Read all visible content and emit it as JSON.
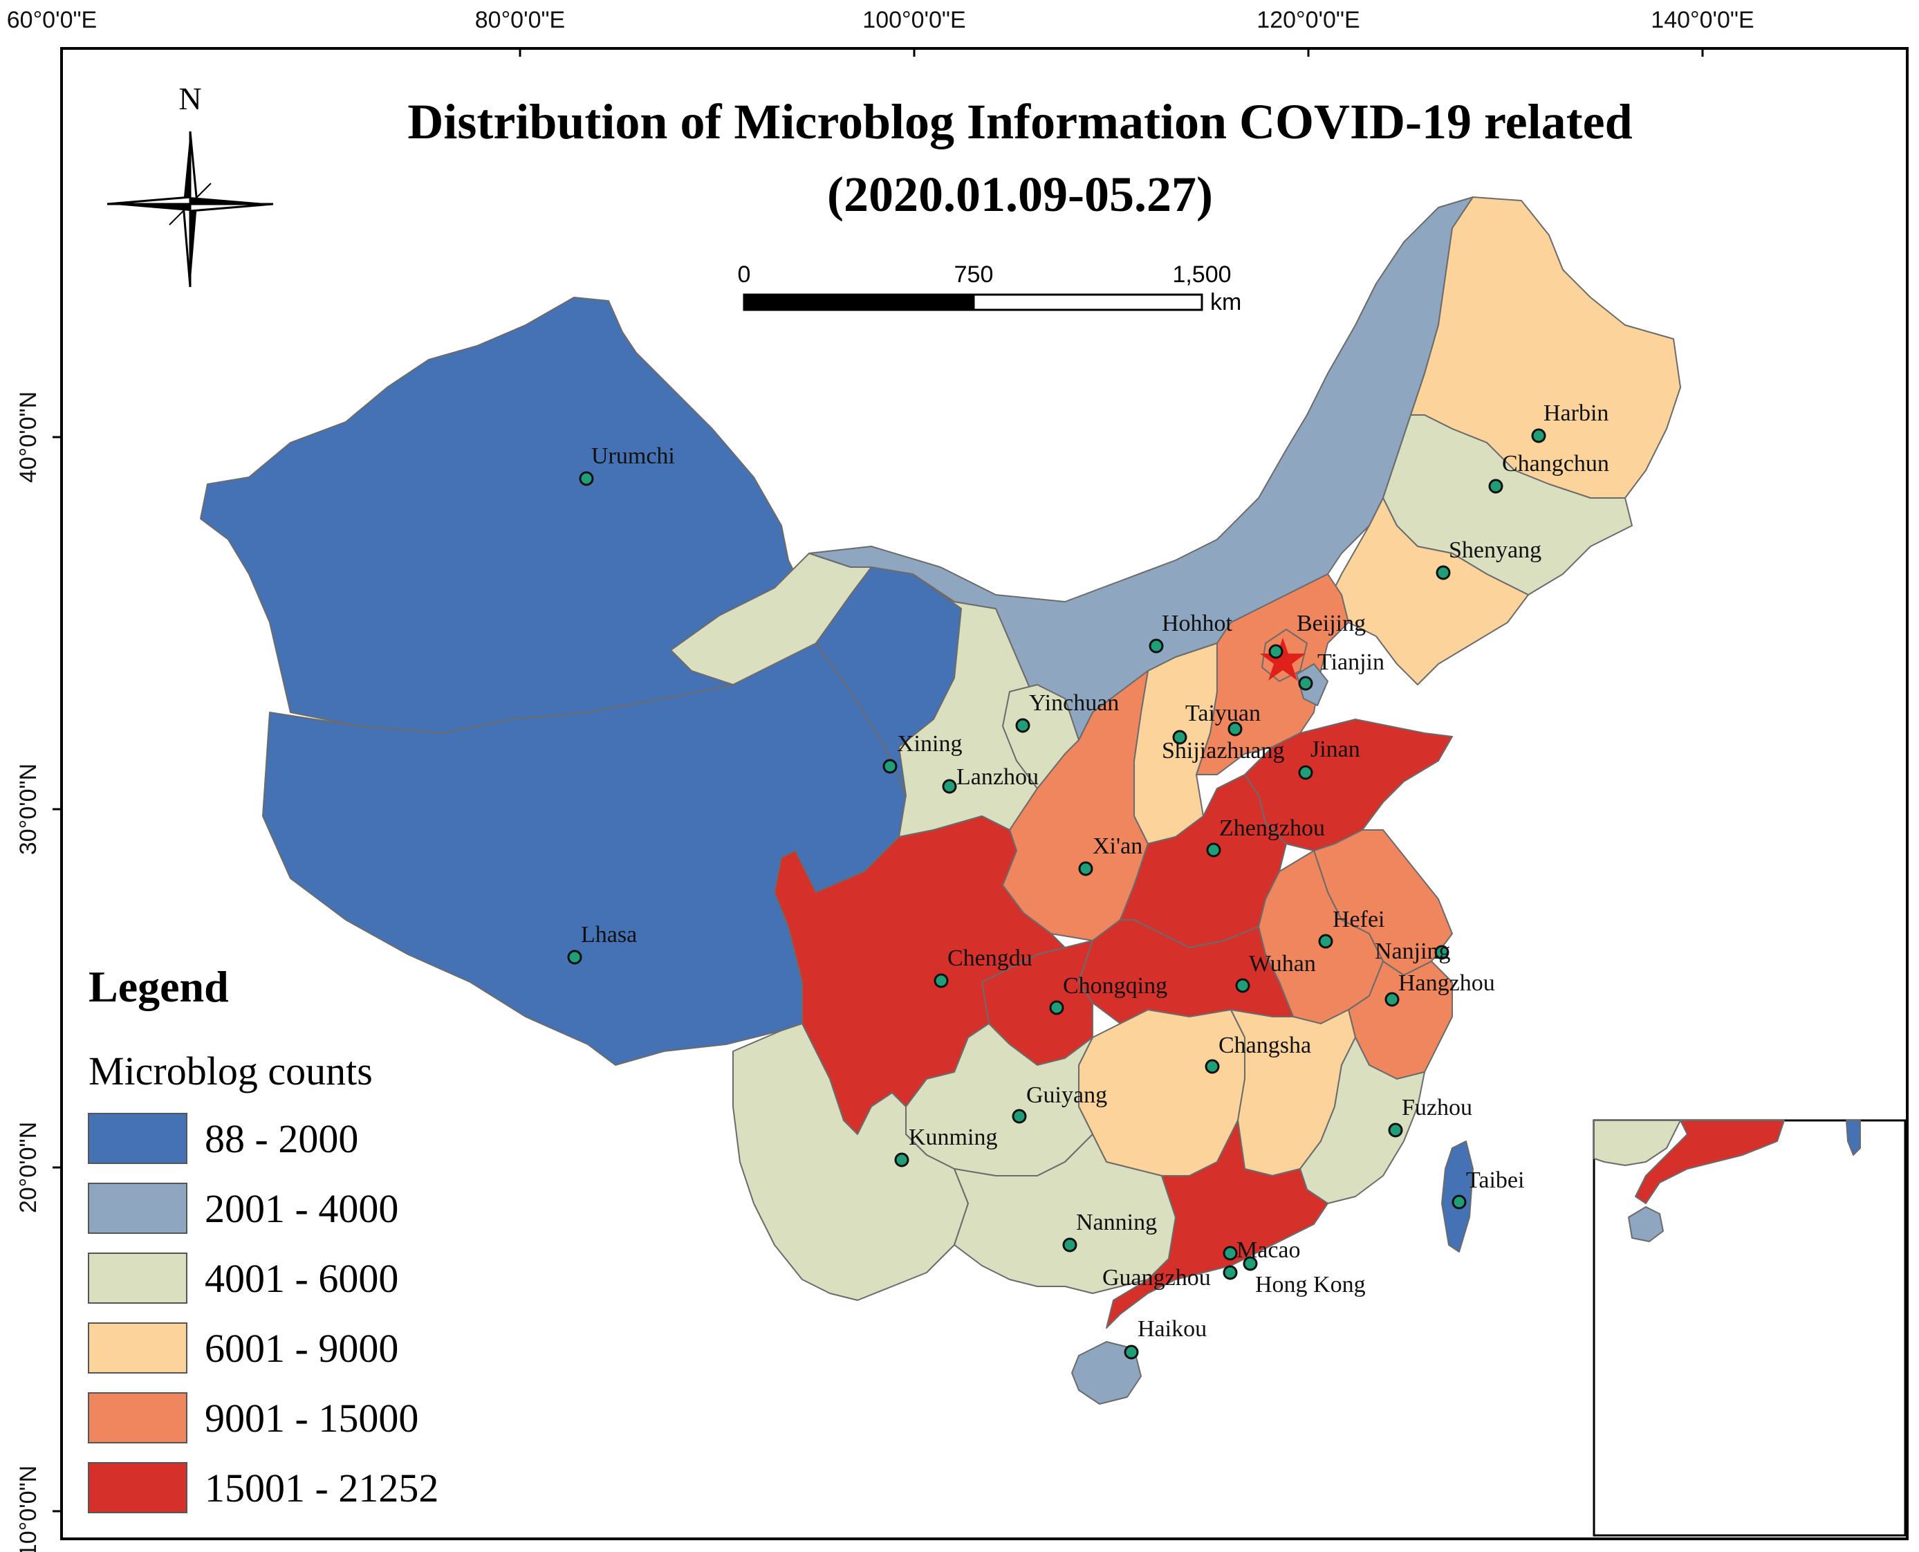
{
  "title": {
    "line1": "Distribution of Microblog Information COVID-19 related",
    "line2": "(2020.01.09-05.27)"
  },
  "north_arrow": {
    "label": "N",
    "icon": "north-arrow-icon"
  },
  "scale_bar": {
    "labels": [
      "0",
      "750",
      "1,500"
    ],
    "unit": "km"
  },
  "axes": {
    "longitude_ticks": [
      "60°0'0\"E",
      "80°0'0\"E",
      "100°0'0\"E",
      "120°0'0\"E",
      "140°0'0\"E"
    ],
    "latitude_ticks": [
      "40°0'0\"N",
      "30°0'0\"N",
      "20°0'0\"N",
      "10°0'0\"N"
    ]
  },
  "legend": {
    "title": "Legend",
    "subtitle": "Microblog counts",
    "classes": [
      {
        "label": "88 - 2000",
        "color": "#4472b4"
      },
      {
        "label": "2001 - 4000",
        "color": "#8ea6bf"
      },
      {
        "label": "4001 - 6000",
        "color": "#d9dfbf"
      },
      {
        "label": "6001 - 9000",
        "color": "#fbd39b"
      },
      {
        "label": "9001 - 15000",
        "color": "#ef865e"
      },
      {
        "label": "15001 - 21252",
        "color": "#d6302b"
      }
    ]
  },
  "cities": [
    "Urumchi",
    "Harbin",
    "Changchun",
    "Shenyang",
    "Hohhot",
    "Beijing",
    "Tianjin",
    "Yinchuan",
    "Taiyuan",
    "Shijiazhuang",
    "Jinan",
    "Xining",
    "Lanzhou",
    "Zhengzhou",
    "Xi'an",
    "Lhasa",
    "Chengdu",
    "Chongqing",
    "Wuhan",
    "Hefei",
    "Nanjing",
    "Hangzhou",
    "Changsha",
    "Guiyang",
    "Fuzhou",
    "Kunming",
    "Taibei",
    "Nanning",
    "Macao",
    "Guangzhou",
    "Hong Kong",
    "Haikou"
  ],
  "capital_marker": {
    "city": "Beijing",
    "icon": "star-icon",
    "color": "#e0201b"
  }
}
